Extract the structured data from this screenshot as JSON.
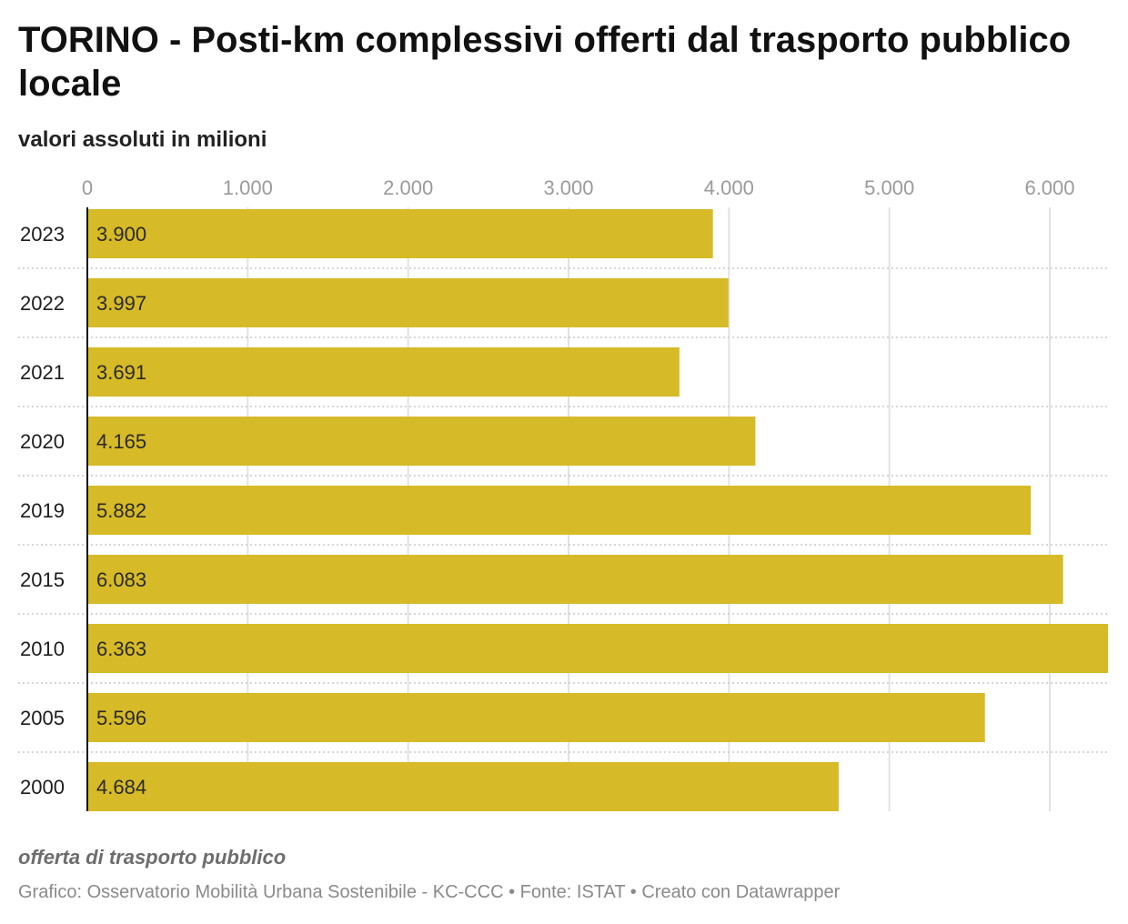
{
  "chart_data": {
    "type": "bar",
    "orientation": "horizontal",
    "title": "TORINO - Posti-km complessivi offerti dal trasporto pubblico locale",
    "subtitle": "valori assoluti in milioni",
    "categories": [
      "2023",
      "2022",
      "2021",
      "2020",
      "2019",
      "2015",
      "2010",
      "2005",
      "2000"
    ],
    "values": [
      3900,
      3997,
      3691,
      4165,
      5882,
      6083,
      6363,
      5596,
      4684
    ],
    "value_labels": [
      "3.900",
      "3.997",
      "3.691",
      "4.165",
      "5.882",
      "6.083",
      "6.363",
      "5.596",
      "4.684"
    ],
    "xlim": [
      0,
      6363
    ],
    "x_ticks": [
      0,
      1000,
      2000,
      3000,
      4000,
      5000,
      6000
    ],
    "x_tick_labels": [
      "0",
      "1.000",
      "2.000",
      "3.000",
      "4.000",
      "5.000",
      "6.000"
    ],
    "x_axis_position": "top",
    "grid": true,
    "bar_color": "#d6ba27"
  },
  "footnote": "offerta di trasporto pubblico",
  "credits": "Grafico: Osservatorio Mobilità Urbana Sostenibile - KC-CCC • Fonte: ISTAT • Creato con Datawrapper"
}
